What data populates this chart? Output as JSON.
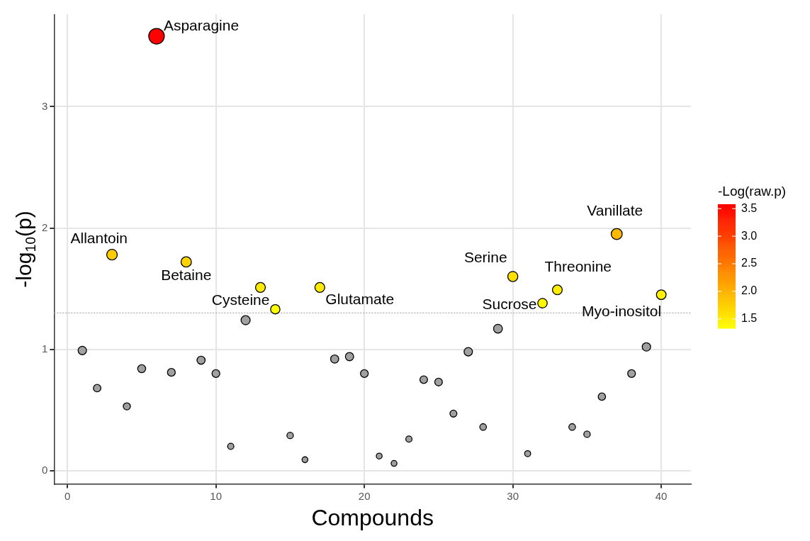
{
  "chart_data": {
    "type": "scatter",
    "xlabel": "Compounds",
    "ylabel": "-log$_{10}$(p)",
    "clabel": "-Log(raw.p)",
    "x": [
      1,
      2,
      3,
      4,
      5,
      6,
      7,
      8,
      9,
      10,
      11,
      12,
      13,
      14,
      15,
      16,
      17,
      18,
      19,
      20,
      21,
      22,
      23,
      24,
      25,
      26,
      27,
      28,
      29,
      30,
      31,
      32,
      33,
      34,
      35,
      36,
      37,
      38,
      39,
      40
    ],
    "series": [
      {
        "color": "#a0a0a0",
        "values": [
          0.99,
          0.68,
          null,
          0.53,
          0.84,
          null,
          0.81,
          null,
          0.91,
          0.8,
          0.2,
          1.24,
          null,
          null,
          0.29,
          0.09,
          null,
          0.92,
          0.94,
          0.8,
          0.12,
          0.06,
          0.26,
          0.75,
          0.73,
          0.47,
          0.98,
          0.36,
          1.17,
          null,
          0.14,
          null,
          null,
          0.36,
          0.3,
          0.61,
          null,
          0.8,
          1.02,
          null
        ],
        "sizes": [
          0.29,
          0.23,
          null,
          0.21,
          0.26,
          null,
          0.25,
          null,
          0.27,
          0.25,
          0.16,
          0.34,
          null,
          null,
          0.17,
          0.14,
          null,
          0.27,
          0.28,
          0.25,
          0.14,
          0.14,
          0.16,
          0.24,
          0.24,
          0.2,
          0.29,
          0.18,
          0.32,
          null,
          0.15,
          null,
          null,
          0.18,
          0.17,
          0.22,
          null,
          0.25,
          0.29,
          null
        ]
      },
      {
        "values": [
          null,
          null,
          1.78,
          null,
          null,
          3.58,
          null,
          1.72,
          null,
          null,
          null,
          null,
          1.51,
          1.33,
          null,
          null,
          1.51,
          null,
          null,
          null,
          null,
          null,
          null,
          null,
          null,
          null,
          null,
          null,
          null,
          1.6,
          null,
          1.38,
          1.49,
          null,
          null,
          null,
          1.95,
          null,
          null,
          1.45
        ],
        "colors": [
          null,
          null,
          "#ffcc00",
          null,
          null,
          "#ff0000",
          null,
          "#ffd300",
          null,
          null,
          null,
          null,
          "#ffeb00",
          "#ffff00",
          null,
          null,
          "#ffeb00",
          null,
          null,
          null,
          null,
          null,
          null,
          null,
          null,
          null,
          null,
          null,
          null,
          "#ffe000",
          null,
          "#fff900",
          "#ffed00",
          null,
          null,
          null,
          "#ffb900",
          null,
          null,
          "#fff100"
        ],
        "sizes": [
          null,
          null,
          0.46,
          null,
          null,
          1,
          null,
          0.44,
          null,
          null,
          null,
          null,
          0.4,
          0.36,
          null,
          null,
          0.4,
          null,
          null,
          null,
          null,
          null,
          null,
          null,
          null,
          null,
          null,
          null,
          null,
          0.42,
          null,
          0.37,
          0.39,
          null,
          null,
          null,
          0.5,
          null,
          null,
          0.38
        ]
      }
    ],
    "annotations": [
      {
        "text": "Asparagine",
        "x": 6,
        "y": 3.58
      },
      {
        "text": "Allantoin",
        "x": 3,
        "y": 1.78
      },
      {
        "text": "Betaine",
        "x": 8,
        "y": 1.72
      },
      {
        "text": "Cysteine",
        "x": 14,
        "y": 1.33
      },
      {
        "text": "Glutamate",
        "x": 17,
        "y": 1.51
      },
      {
        "text": "Serine",
        "x": 30,
        "y": 1.6
      },
      {
        "text": "Sucrose",
        "x": 32,
        "y": 1.38
      },
      {
        "text": "Threonine",
        "x": 33,
        "y": 1.49
      },
      {
        "text": "Vanillate",
        "x": 37,
        "y": 1.95
      },
      {
        "text": "Myo-inositol",
        "x": 40,
        "y": 1.45
      }
    ],
    "xlim": [
      -0.9,
      42
    ],
    "ylim": [
      -0.11,
      3.76
    ],
    "xticks": [
      0,
      10,
      20,
      30,
      40
    ],
    "yticks": [
      0,
      1,
      2,
      3
    ],
    "clim": [
      1.33,
      3.58
    ],
    "cticks": [
      1.5,
      {
        "value": 2,
        "label": "2.0"
      },
      2.5,
      {
        "value": 3,
        "label": "3.0"
      },
      3.5
    ],
    "ref_lines": [
      {
        "axis": "y",
        "value": 1.3,
        "color": "#aaaaaa",
        "line_style": "dotted"
      }
    ],
    "grid": true,
    "marker": "circle"
  }
}
